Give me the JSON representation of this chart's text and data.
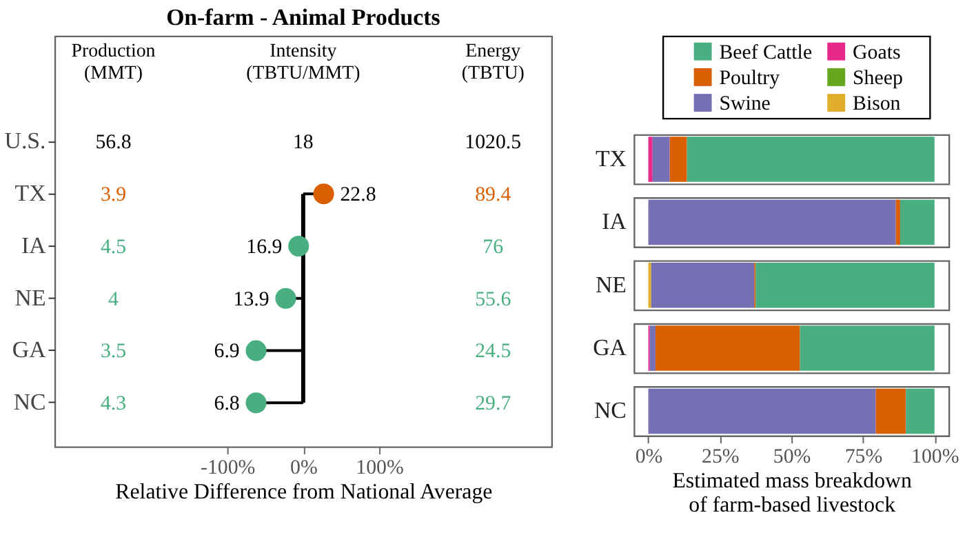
{
  "chart_data": [
    {
      "type": "lollipop",
      "orientation": "horizontal",
      "title": "On-farm - Animal Products",
      "xlabel": "Relative Difference from National Average",
      "categories": [
        "U.S.",
        "TX",
        "IA",
        "NE",
        "GA",
        "NC"
      ],
      "values": [
        null,
        27,
        -6,
        -23,
        -62,
        -62
      ],
      "colors": [
        null,
        "#d95f02",
        "#4aaf80",
        "#4aaf80",
        "#4aaf80",
        "#4aaf80"
      ],
      "xlim": [
        -327,
        327
      ],
      "xticks": [
        {
          "value": -100,
          "label": "-100%"
        },
        {
          "value": 0,
          "label": "0%"
        },
        {
          "value": 100,
          "label": "100%"
        }
      ],
      "ref_lines": [
        {
          "axis": "x",
          "value": 0,
          "color": "#000000"
        }
      ],
      "annotations": [
        "Production\n(MMT)",
        "Intensity\n(TBTU/MMT)",
        "Energy\n(TBTU)",
        "56.8",
        "18",
        "1020.5",
        "3.9",
        "22.8",
        "89.4",
        "4.5",
        "16.9",
        "76",
        "4",
        "13.9",
        "55.6",
        "3.5",
        "6.9",
        "24.5",
        "4.3",
        "6.8",
        "29.7"
      ],
      "grid": false
    },
    {
      "type": "bar",
      "orientation": "horizontal",
      "stacked": true,
      "xlabel": "Estimated mass breakdown\nof farm-based livestock",
      "categories": [
        "TX",
        "IA",
        "NE",
        "GA",
        "NC"
      ],
      "series": [
        {
          "name": "Bison",
          "color": "#e0ae2a",
          "values": [
            0,
            0,
            1,
            0,
            0
          ]
        },
        {
          "name": "Sheep",
          "color": "#66a61e",
          "values": [
            0,
            0,
            0,
            0,
            0
          ]
        },
        {
          "name": "Goats",
          "color": "#e7298a",
          "values": [
            1.5,
            0,
            0,
            0.5,
            0
          ]
        },
        {
          "name": "Swine",
          "color": "#7570b3",
          "values": [
            6,
            86.5,
            36,
            2,
            79.5
          ]
        },
        {
          "name": "Poultry",
          "color": "#d95f02",
          "values": [
            6,
            1.5,
            0.5,
            50.5,
            10.5
          ]
        },
        {
          "name": "Beef Cattle",
          "color": "#4aaf80",
          "values": [
            86.5,
            12,
            62.5,
            47,
            10
          ]
        }
      ],
      "xlim": [
        -5,
        105
      ],
      "xticks": [
        {
          "value": 0,
          "label": "0%"
        },
        {
          "value": 25,
          "label": "25%"
        },
        {
          "value": 50,
          "label": "50%"
        },
        {
          "value": 75,
          "label": "75%"
        },
        {
          "value": 100,
          "label": "100%"
        }
      ],
      "legend": "top",
      "grid": false
    }
  ]
}
